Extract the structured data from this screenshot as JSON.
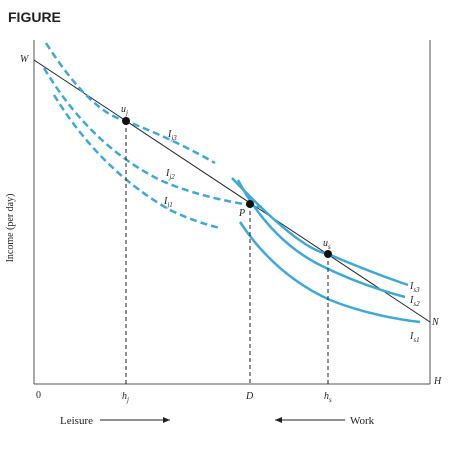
{
  "figure": {
    "heading": "FIGURE",
    "y_axis_title": "Income (per day)",
    "origin_label": "0",
    "vertical_axis_label": "W",
    "horizontal_axis_label": "H",
    "budget_line_end_label": "N",
    "tick_labels": {
      "hj": "h",
      "hj_sub": "j",
      "d": "D",
      "hs": "h",
      "hs_sub": "s"
    },
    "points": {
      "uj": {
        "main": "u",
        "sub": "j"
      },
      "p": {
        "main": "P"
      },
      "us": {
        "main": "u",
        "sub": "s"
      }
    },
    "indifference_j": [
      {
        "main": "I",
        "sub": "j3"
      },
      {
        "main": "I",
        "sub": "j2"
      },
      {
        "main": "I",
        "sub": "j1"
      }
    ],
    "indifference_s": [
      {
        "main": "I",
        "sub": "s3"
      },
      {
        "main": "I",
        "sub": "s2"
      },
      {
        "main": "I",
        "sub": "s1"
      }
    ],
    "direction_labels": {
      "leisure": "Leisure",
      "work": "Work"
    },
    "colors": {
      "curve": "#3ea8d6",
      "ink": "#222222",
      "axis": "#555555"
    }
  }
}
